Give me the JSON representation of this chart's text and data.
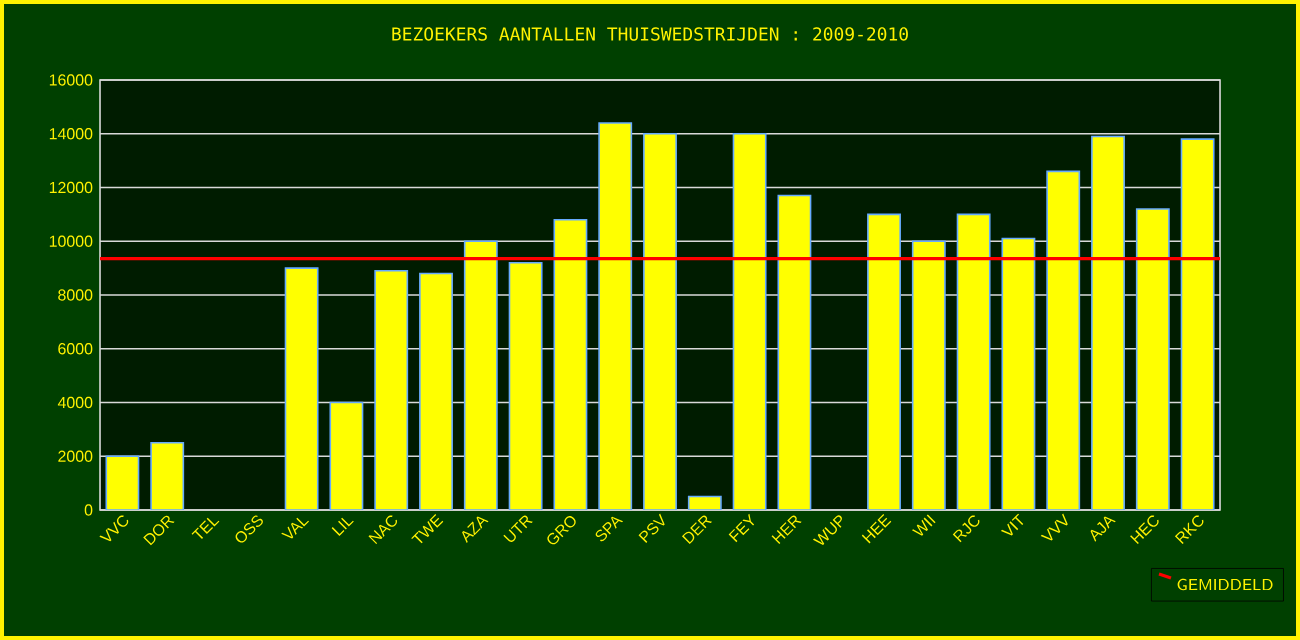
{
  "chart_data": {
    "type": "bar",
    "title": "BEZOEKERS AANTALLEN THUISWEDSTRIJDEN : 2009-2010",
    "categories": [
      "VVC",
      "DOR",
      "TEL",
      "OSS",
      "VAL",
      "LIL",
      "NAC",
      "TWE",
      "AZA",
      "UTR",
      "GRO",
      "SPA",
      "PSV",
      "DER",
      "FEY",
      "HER",
      "WUP",
      "HEE",
      "WII",
      "RJC",
      "VIT",
      "VVV",
      "AJA",
      "HEC",
      "RKC"
    ],
    "values": [
      2000,
      2500,
      null,
      null,
      9000,
      4000,
      8900,
      8800,
      10000,
      9200,
      10800,
      14400,
      14000,
      500,
      14000,
      11700,
      null,
      11000,
      10000,
      11000,
      10100,
      12600,
      13900,
      11200,
      13800
    ],
    "color": "#ffff00",
    "ylim": [
      0,
      16000
    ],
    "yticks": [
      0,
      2000,
      4000,
      6000,
      8000,
      10000,
      12000,
      14000,
      16000
    ],
    "grid": "y",
    "legend": "bottom right",
    "ref_lines": [
      {
        "axis": "y",
        "value": 9350,
        "label": "GEMIDDELD",
        "color": "#ff0000"
      }
    ]
  }
}
